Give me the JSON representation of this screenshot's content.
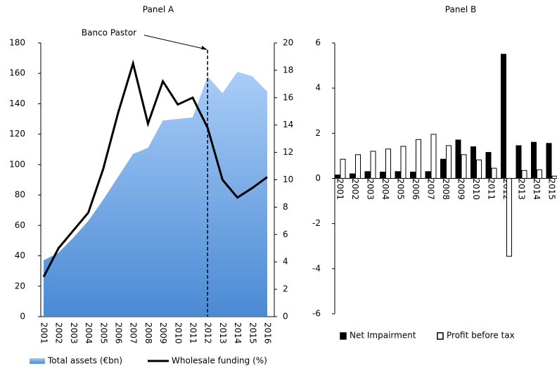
{
  "chart_data": [
    {
      "type": "combo",
      "title": "Panel A",
      "categories": [
        "2001",
        "2002",
        "2003",
        "2004",
        "2005",
        "2006",
        "2007",
        "2008",
        "2009",
        "2010",
        "2011",
        "2012",
        "2013",
        "2014",
        "2015",
        "2016"
      ],
      "series": [
        {
          "name": "Total assets (€bn)",
          "type": "area",
          "color": "#5b9bd5",
          "axis": "y",
          "values": [
            37,
            42,
            52,
            63,
            77,
            92,
            107,
            111,
            129,
            130,
            131,
            158,
            147,
            161,
            158,
            148
          ]
        },
        {
          "name": "Wholesale funding (%)",
          "type": "line",
          "color": "#000000",
          "axis": "y2",
          "values": [
            2.9,
            5,
            6.3,
            7.6,
            10.8,
            14.9,
            18.5,
            14.1,
            17.2,
            15.5,
            16,
            13.8,
            10,
            8.7,
            9.4,
            10.2
          ]
        }
      ],
      "ylim": [
        0,
        180
      ],
      "yticks": [
        0,
        20,
        40,
        60,
        80,
        100,
        120,
        140,
        160,
        180
      ],
      "y2lim": [
        0,
        20
      ],
      "y2ticks": [
        0,
        2,
        4,
        6,
        8,
        10,
        12,
        14,
        16,
        18,
        20
      ],
      "annotations": [
        {
          "text": "Banco Pastor",
          "x": "2012"
        }
      ]
    },
    {
      "type": "bar",
      "title": "Panel B",
      "categories": [
        "2001",
        "2002",
        "2003",
        "2004",
        "2005",
        "2006",
        "2007",
        "2008",
        "2009",
        "2010",
        "2011",
        "2012",
        "2013",
        "2014",
        "2015"
      ],
      "series": [
        {
          "name": "Net Impairment",
          "color": "#000000",
          "values": [
            0.15,
            0.2,
            0.3,
            0.28,
            0.3,
            0.28,
            0.3,
            0.85,
            1.7,
            1.4,
            1.15,
            5.5,
            1.45,
            1.6,
            1.55
          ]
        },
        {
          "name": "Profit before tax",
          "color": "#ffffff",
          "values": [
            0.85,
            1.05,
            1.2,
            1.3,
            1.42,
            1.72,
            1.95,
            1.45,
            1.05,
            0.82,
            0.45,
            -3.45,
            0.35,
            0.38,
            0.1
          ]
        }
      ],
      "ylim": [
        -6,
        6
      ],
      "yticks": [
        -6,
        -4,
        -2,
        0,
        2,
        4,
        6
      ]
    }
  ]
}
